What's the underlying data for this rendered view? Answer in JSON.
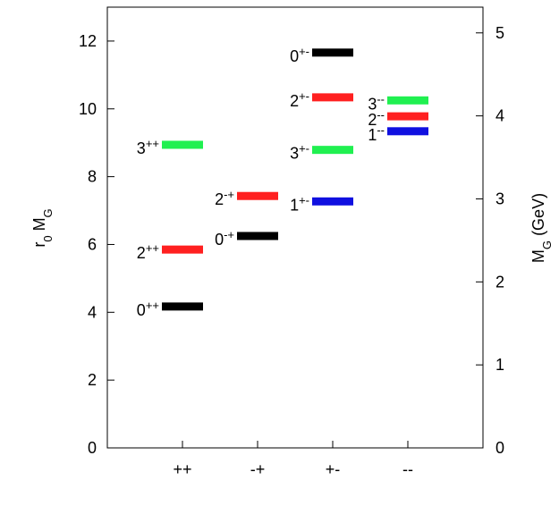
{
  "chart_data": {
    "type": "levels",
    "xlim": [
      0,
      5
    ],
    "xticks": [
      {
        "value": 1,
        "label": "++"
      },
      {
        "value": 2,
        "label": "-+"
      },
      {
        "value": 3,
        "label": "+-"
      },
      {
        "value": 4,
        "label": "--"
      }
    ],
    "ylim": [
      0,
      13
    ],
    "yticks": [
      0,
      2,
      4,
      6,
      8,
      10,
      12
    ],
    "y2lim": [
      0,
      5.31
    ],
    "y2ticks": [
      0,
      1,
      2,
      3,
      4,
      5
    ],
    "ylabel": [
      "r",
      "0",
      " M",
      "G"
    ],
    "y2label": [
      "M",
      "G",
      " (GeV)"
    ],
    "levels": [
      {
        "x": 1,
        "value": 4.17,
        "color": "#000000",
        "label": "0",
        "sup": "++"
      },
      {
        "x": 1,
        "value": 5.85,
        "color": "#ff2020",
        "label": "2",
        "sup": "++"
      },
      {
        "x": 1,
        "value": 8.94,
        "color": "#20f050",
        "label": "3",
        "sup": "++"
      },
      {
        "x": 2,
        "value": 6.25,
        "color": "#000000",
        "label": "0",
        "sup": "-+"
      },
      {
        "x": 2,
        "value": 7.43,
        "color": "#ff2020",
        "label": "2",
        "sup": "-+"
      },
      {
        "x": 3,
        "value": 7.27,
        "color": "#1010e0",
        "label": "1",
        "sup": "+-"
      },
      {
        "x": 3,
        "value": 8.79,
        "color": "#20f050",
        "label": "3",
        "sup": "+-"
      },
      {
        "x": 3,
        "value": 10.34,
        "color": "#ff2020",
        "label": "2",
        "sup": "+-"
      },
      {
        "x": 3,
        "value": 11.66,
        "color": "#000000",
        "label": "0",
        "sup": "+-"
      },
      {
        "x": 4,
        "value": 9.34,
        "color": "#1010e0",
        "label": "1",
        "sup": "--"
      },
      {
        "x": 4,
        "value": 9.78,
        "color": "#ff2020",
        "label": "2",
        "sup": "--"
      },
      {
        "x": 4,
        "value": 10.25,
        "color": "#20f050",
        "label": "3",
        "sup": "--"
      }
    ]
  }
}
